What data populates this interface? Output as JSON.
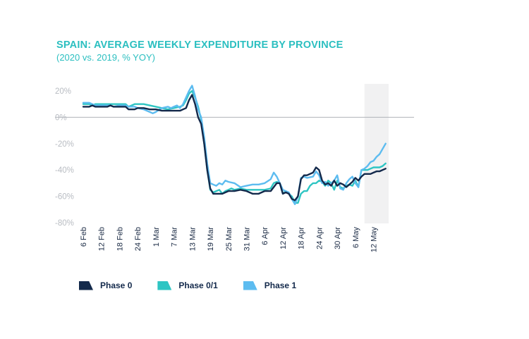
{
  "chart_data": {
    "type": "line",
    "title": "SPAIN: AVERAGE WEEKLY EXPENDITURE BY PROVINCE",
    "subtitle": "(2020 vs. 2019, % YOY)",
    "ylim": [
      -80,
      20
    ],
    "yticks": [
      "20%",
      "0%",
      "-20%",
      "-40%",
      "-60%",
      "-80%"
    ],
    "ytick_values": [
      20,
      0,
      -20,
      -40,
      -60,
      -80
    ],
    "x_tick_labels": [
      "6 Feb",
      "12 Feb",
      "18 Feb",
      "24 Feb",
      "1 Mar",
      "7 Mar",
      "13 Mar",
      "19 Mar",
      "25 Mar",
      "31 Mar",
      "6 Apr",
      "12 Apr",
      "18 Apr",
      "24 Apr",
      "30 Apr",
      "6 May",
      "12 May"
    ],
    "x_range": [
      0,
      101
    ],
    "shaded_region": [
      93,
      101
    ],
    "zero_line": true,
    "series": [
      {
        "name": "Phase 0",
        "color": "#13294b",
        "points": [
          [
            0,
            8
          ],
          [
            2,
            8
          ],
          [
            3,
            9
          ],
          [
            4,
            8
          ],
          [
            6,
            8
          ],
          [
            8,
            8
          ],
          [
            9,
            9
          ],
          [
            10,
            8
          ],
          [
            12,
            8
          ],
          [
            14,
            8
          ],
          [
            15,
            6
          ],
          [
            17,
            6
          ],
          [
            18,
            7
          ],
          [
            20,
            7
          ],
          [
            22,
            6
          ],
          [
            24,
            6
          ],
          [
            26,
            5
          ],
          [
            28,
            5
          ],
          [
            30,
            5
          ],
          [
            32,
            5
          ],
          [
            33,
            6
          ],
          [
            34,
            7
          ],
          [
            35,
            13
          ],
          [
            36,
            17
          ],
          [
            37,
            10
          ],
          [
            38,
            0
          ],
          [
            39,
            -5
          ],
          [
            40,
            -20
          ],
          [
            41,
            -40
          ],
          [
            42,
            -54
          ],
          [
            43,
            -58
          ],
          [
            44,
            -58
          ],
          [
            46,
            -58
          ],
          [
            47,
            -57
          ],
          [
            48,
            -56
          ],
          [
            50,
            -56
          ],
          [
            52,
            -55
          ],
          [
            54,
            -56
          ],
          [
            56,
            -58
          ],
          [
            58,
            -58
          ],
          [
            59,
            -57
          ],
          [
            60,
            -56
          ],
          [
            62,
            -56
          ],
          [
            63,
            -53
          ],
          [
            64,
            -50
          ],
          [
            65,
            -50
          ],
          [
            66,
            -58
          ],
          [
            67,
            -57
          ],
          [
            68,
            -58
          ],
          [
            69,
            -62
          ],
          [
            70,
            -63
          ],
          [
            71,
            -60
          ],
          [
            72,
            -47
          ],
          [
            73,
            -44
          ],
          [
            74,
            -44
          ],
          [
            76,
            -42
          ],
          [
            77,
            -38
          ],
          [
            78,
            -40
          ],
          [
            79,
            -48
          ],
          [
            80,
            -51
          ],
          [
            81,
            -50
          ],
          [
            82,
            -52
          ],
          [
            83,
            -48
          ],
          [
            84,
            -52
          ],
          [
            85,
            -50
          ],
          [
            86,
            -51
          ],
          [
            87,
            -53
          ],
          [
            88,
            -51
          ],
          [
            89,
            -49
          ],
          [
            90,
            -46
          ],
          [
            91,
            -48
          ],
          [
            92,
            -45
          ],
          [
            93,
            -43
          ],
          [
            94,
            -43
          ],
          [
            95,
            -43
          ],
          [
            96,
            -42
          ],
          [
            97,
            -41
          ],
          [
            98,
            -41
          ],
          [
            99,
            -40
          ],
          [
            100,
            -39
          ]
        ]
      },
      {
        "name": "Phase 0/1",
        "color": "#2ec5c3",
        "points": [
          [
            0,
            10
          ],
          [
            2,
            10
          ],
          [
            3,
            9
          ],
          [
            4,
            10
          ],
          [
            6,
            10
          ],
          [
            8,
            10
          ],
          [
            9,
            10
          ],
          [
            10,
            10
          ],
          [
            12,
            10
          ],
          [
            14,
            10
          ],
          [
            15,
            8
          ],
          [
            16,
            9
          ],
          [
            17,
            10
          ],
          [
            18,
            10
          ],
          [
            20,
            10
          ],
          [
            22,
            9
          ],
          [
            24,
            8
          ],
          [
            26,
            7
          ],
          [
            28,
            6
          ],
          [
            30,
            7
          ],
          [
            32,
            8
          ],
          [
            33,
            9
          ],
          [
            34,
            13
          ],
          [
            35,
            18
          ],
          [
            36,
            20
          ],
          [
            37,
            15
          ],
          [
            38,
            8
          ],
          [
            39,
            -2
          ],
          [
            40,
            -20
          ],
          [
            41,
            -40
          ],
          [
            42,
            -55
          ],
          [
            43,
            -57
          ],
          [
            44,
            -56
          ],
          [
            45,
            -55
          ],
          [
            46,
            -58
          ],
          [
            47,
            -56
          ],
          [
            48,
            -55
          ],
          [
            49,
            -54
          ],
          [
            50,
            -55
          ],
          [
            52,
            -54
          ],
          [
            54,
            -55
          ],
          [
            56,
            -55
          ],
          [
            58,
            -55
          ],
          [
            60,
            -55
          ],
          [
            62,
            -54
          ],
          [
            63,
            -50
          ],
          [
            64,
            -49
          ],
          [
            65,
            -50
          ],
          [
            66,
            -58
          ],
          [
            67,
            -56
          ],
          [
            68,
            -58
          ],
          [
            69,
            -60
          ],
          [
            70,
            -65
          ],
          [
            71,
            -65
          ],
          [
            72,
            -58
          ],
          [
            73,
            -56
          ],
          [
            74,
            -56
          ],
          [
            75,
            -52
          ],
          [
            76,
            -50
          ],
          [
            77,
            -50
          ],
          [
            78,
            -48
          ],
          [
            79,
            -49
          ],
          [
            80,
            -52
          ],
          [
            81,
            -48
          ],
          [
            82,
            -50
          ],
          [
            83,
            -55
          ],
          [
            84,
            -48
          ],
          [
            85,
            -53
          ],
          [
            86,
            -54
          ],
          [
            87,
            -52
          ],
          [
            88,
            -51
          ],
          [
            89,
            -52
          ],
          [
            90,
            -48
          ],
          [
            91,
            -53
          ],
          [
            92,
            -40
          ],
          [
            93,
            -40
          ],
          [
            94,
            -40
          ],
          [
            95,
            -39
          ],
          [
            96,
            -38
          ],
          [
            97,
            -38
          ],
          [
            98,
            -38
          ],
          [
            99,
            -37
          ],
          [
            100,
            -35
          ]
        ]
      },
      {
        "name": "Phase 1",
        "color": "#5dbcf0",
        "points": [
          [
            0,
            11
          ],
          [
            2,
            11
          ],
          [
            3,
            10
          ],
          [
            4,
            9
          ],
          [
            6,
            9
          ],
          [
            8,
            9
          ],
          [
            9,
            9
          ],
          [
            10,
            8
          ],
          [
            12,
            9
          ],
          [
            14,
            9
          ],
          [
            15,
            8
          ],
          [
            16,
            8
          ],
          [
            17,
            8
          ],
          [
            18,
            7
          ],
          [
            20,
            6
          ],
          [
            22,
            4
          ],
          [
            23,
            3
          ],
          [
            24,
            4
          ],
          [
            26,
            7
          ],
          [
            28,
            8
          ],
          [
            29,
            7
          ],
          [
            30,
            8
          ],
          [
            31,
            9
          ],
          [
            32,
            7
          ],
          [
            33,
            10
          ],
          [
            34,
            15
          ],
          [
            35,
            20
          ],
          [
            36,
            24
          ],
          [
            37,
            16
          ],
          [
            38,
            6
          ],
          [
            39,
            0
          ],
          [
            40,
            -15
          ],
          [
            41,
            -35
          ],
          [
            42,
            -50
          ],
          [
            43,
            -51
          ],
          [
            44,
            -52
          ],
          [
            45,
            -50
          ],
          [
            46,
            -51
          ],
          [
            47,
            -48
          ],
          [
            48,
            -49
          ],
          [
            50,
            -50
          ],
          [
            52,
            -53
          ],
          [
            54,
            -52
          ],
          [
            56,
            -51
          ],
          [
            58,
            -51
          ],
          [
            60,
            -50
          ],
          [
            62,
            -47
          ],
          [
            63,
            -42
          ],
          [
            64,
            -45
          ],
          [
            65,
            -50
          ],
          [
            66,
            -55
          ],
          [
            67,
            -56
          ],
          [
            68,
            -57
          ],
          [
            69,
            -62
          ],
          [
            70,
            -66
          ],
          [
            71,
            -60
          ],
          [
            72,
            -46
          ],
          [
            73,
            -45
          ],
          [
            74,
            -46
          ],
          [
            76,
            -45
          ],
          [
            77,
            -41
          ],
          [
            78,
            -44
          ],
          [
            79,
            -50
          ],
          [
            80,
            -49
          ],
          [
            81,
            -52
          ],
          [
            82,
            -50
          ],
          [
            83,
            -48
          ],
          [
            84,
            -44
          ],
          [
            85,
            -54
          ],
          [
            86,
            -55
          ],
          [
            87,
            -50
          ],
          [
            88,
            -47
          ],
          [
            89,
            -45
          ],
          [
            90,
            -50
          ],
          [
            91,
            -53
          ],
          [
            92,
            -40
          ],
          [
            93,
            -39
          ],
          [
            94,
            -37
          ],
          [
            95,
            -34
          ],
          [
            96,
            -33
          ],
          [
            97,
            -30
          ],
          [
            98,
            -28
          ],
          [
            99,
            -24
          ],
          [
            100,
            -20
          ]
        ]
      }
    ],
    "legend": [
      {
        "label": "Phase 0",
        "color": "#13294b"
      },
      {
        "label": "Phase 0/1",
        "color": "#2ec5c3"
      },
      {
        "label": "Phase 1",
        "color": "#5dbcf0"
      }
    ],
    "grid": false,
    "legend_position": "bottom"
  }
}
